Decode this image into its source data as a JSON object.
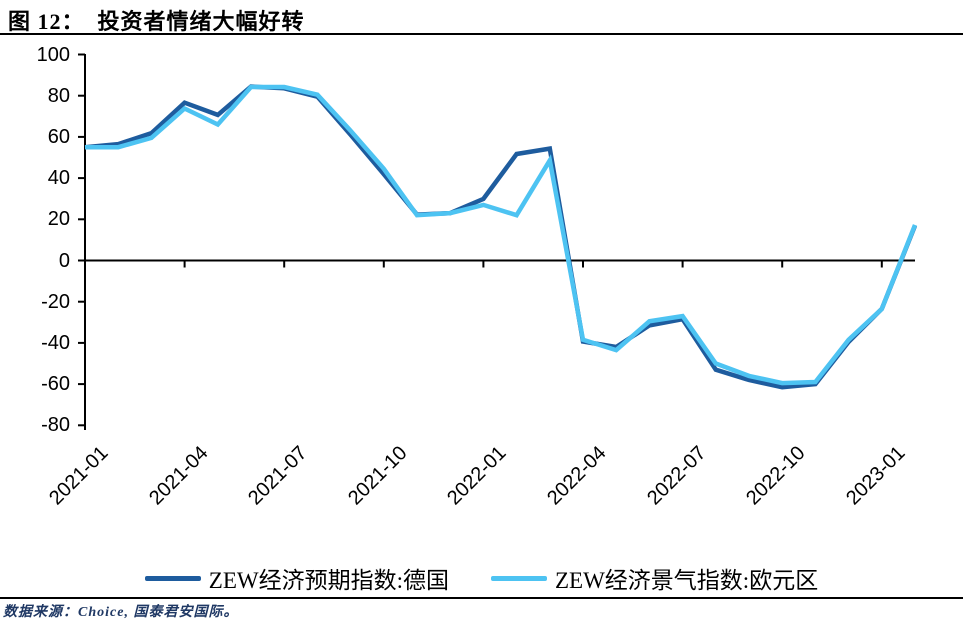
{
  "header": {
    "title": "图 12：  投资者情绪大幅好转"
  },
  "chart_data": {
    "type": "line",
    "title": "投资者情绪大幅好转",
    "x": [
      "2021-01",
      "2021-02",
      "2021-03",
      "2021-04",
      "2021-05",
      "2021-06",
      "2021-07",
      "2021-08",
      "2021-09",
      "2021-10",
      "2021-11",
      "2021-12",
      "2022-01",
      "2022-02",
      "2022-03",
      "2022-04",
      "2022-05",
      "2022-06",
      "2022-07",
      "2022-08",
      "2022-09",
      "2022-10",
      "2022-11",
      "2022-12",
      "2023-01",
      "2023-02"
    ],
    "series": [
      {
        "name": "ZEW经济预期指数:德国",
        "color": "#1E5C9E",
        "values": [
          55.0,
          56.5,
          61.8,
          76.6,
          70.7,
          84.4,
          83.6,
          79.5,
          61.0,
          41.9,
          22.3,
          23.0,
          29.9,
          51.7,
          54.3,
          -39.3,
          -42.0,
          -31.5,
          -28.5,
          -53.0,
          -58.0,
          -61.5,
          -60.0,
          -39.5,
          -23.5,
          16.9
        ]
      },
      {
        "name": "ZEW经济景气指数:欧元区",
        "color": "#4DC3F2",
        "values": [
          55.0,
          55.0,
          59.5,
          73.8,
          66.0,
          84.2,
          84.2,
          80.5,
          63.0,
          44.5,
          22.0,
          23.0,
          27.0,
          22.0,
          48.6,
          -38.5,
          -43.5,
          -29.5,
          -27.0,
          -50.0,
          -56.0,
          -59.5,
          -59.0,
          -38.5,
          -23.5,
          17.3
        ]
      }
    ],
    "ylim": [
      -80,
      100
    ],
    "y_ticks": [
      100,
      80,
      60,
      40,
      20,
      0,
      -20,
      -40,
      -60,
      -80
    ],
    "x_tick_labels": [
      "2021-01",
      "2021-04",
      "2021-07",
      "2021-10",
      "2022-01",
      "2022-04",
      "2022-07",
      "2022-10",
      "2023-01"
    ],
    "x_tick_indices": [
      0,
      3,
      6,
      9,
      12,
      15,
      18,
      21,
      24
    ],
    "grid": false,
    "legend_position": "bottom",
    "axis_color": "#000000"
  },
  "footer": {
    "source": "数据来源：Choice, 国泰君安国际。"
  }
}
